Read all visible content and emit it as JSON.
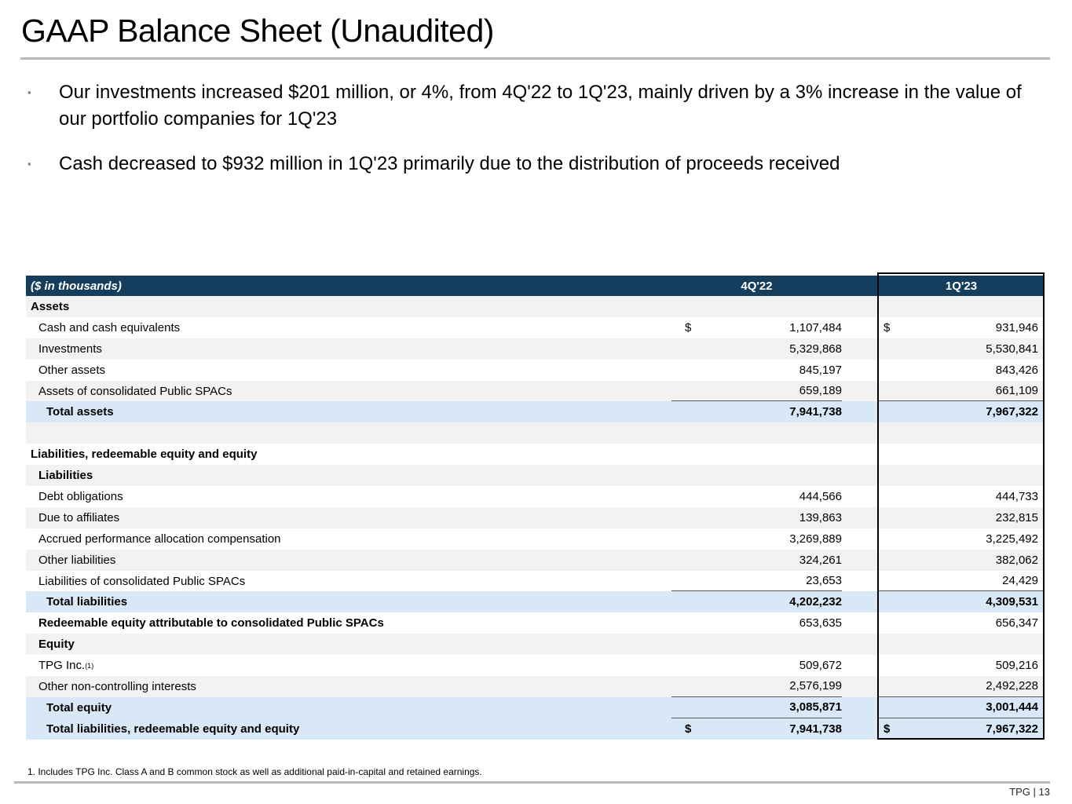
{
  "slide": {
    "title": "GAAP Balance Sheet (Unaudited)",
    "bullet_marker": "▪",
    "bullets": [
      "Our investments increased $201 million, or 4%, from 4Q'22 to 1Q'23, mainly driven by a 3% increase in the value of our portfolio companies for 1Q'23",
      "Cash decreased to $932 million in 1Q'23 primarily due to the distribution of proceeds received"
    ],
    "footnote": "1. Includes TPG Inc. Class A and B common stock as well as additional paid-in-capital and retained earnings.",
    "page_label": "TPG | 13"
  },
  "colors": {
    "header_navy": "#143d5e",
    "total_row_blue": "#d9e8f6",
    "alt_row_gray": "#f2f2f2",
    "highlight_border": "#000000",
    "rule_gray": "#b9b9b9"
  },
  "table": {
    "header": {
      "label": "($ in thousands)",
      "col1": "4Q'22",
      "col2": "1Q'23"
    },
    "dollar_sign": "$",
    "rows": [
      {
        "label": "Assets",
        "bold": true,
        "indent": 0,
        "bg": "gray"
      },
      {
        "label": "Cash and cash equivalents",
        "indent": 1,
        "bg": "white",
        "dollar": true,
        "v1": "1,107,484",
        "v2": "931,946"
      },
      {
        "label": "Investments",
        "indent": 1,
        "bg": "gray",
        "v1": "5,329,868",
        "v2": "5,530,841"
      },
      {
        "label": "Other assets",
        "indent": 1,
        "bg": "white",
        "v1": "845,197",
        "v2": "843,426"
      },
      {
        "label": "Assets of consolidated Public SPACs",
        "indent": 1,
        "bg": "gray",
        "v1": "659,189",
        "v2": "661,109",
        "underline": true
      },
      {
        "label": "Total assets",
        "bold": true,
        "vbold": true,
        "indent": 2,
        "bg": "blue",
        "v1": "7,941,738",
        "v2": "7,967,322"
      },
      {
        "label": "",
        "indent": 0,
        "bg": "gray"
      },
      {
        "label": "Liabilities, redeemable equity and equity",
        "bold": true,
        "indent": 0,
        "bg": "white"
      },
      {
        "label": "Liabilities",
        "bold": true,
        "indent": 1,
        "bg": "gray"
      },
      {
        "label": "Debt obligations",
        "indent": 1,
        "bg": "white",
        "v1": "444,566",
        "v2": "444,733"
      },
      {
        "label": "Due to affiliates",
        "indent": 1,
        "bg": "gray",
        "v1": "139,863",
        "v2": "232,815"
      },
      {
        "label": "Accrued performance allocation compensation",
        "indent": 1,
        "bg": "white",
        "v1": "3,269,889",
        "v2": "3,225,492"
      },
      {
        "label": "Other liabilities",
        "indent": 1,
        "bg": "gray",
        "v1": "324,261",
        "v2": "382,062"
      },
      {
        "label": "Liabilities of consolidated Public SPACs",
        "indent": 1,
        "bg": "white",
        "v1": "23,653",
        "v2": "24,429",
        "underline": true
      },
      {
        "label": "Total liabilities",
        "bold": true,
        "vbold": true,
        "indent": 2,
        "bg": "blue",
        "v1": "4,202,232",
        "v2": "4,309,531"
      },
      {
        "label": "Redeemable equity attributable to consolidated Public SPACs",
        "bold": true,
        "indent": 1,
        "bg": "white",
        "v1": "653,635",
        "v2": "656,347"
      },
      {
        "label": "Equity",
        "bold": true,
        "indent": 1,
        "bg": "gray"
      },
      {
        "label": "TPG Inc.",
        "sup": "(1)",
        "indent": 1,
        "bg": "white",
        "v1": "509,672",
        "v2": "509,216"
      },
      {
        "label": "Other non-controlling interests",
        "indent": 1,
        "bg": "gray",
        "v1": "2,576,199",
        "v2": "2,492,228",
        "underline": true
      },
      {
        "label": "Total equity",
        "bold": true,
        "vbold": true,
        "indent": 2,
        "bg": "blue",
        "v1": "3,085,871",
        "v2": "3,001,444",
        "underline": true
      },
      {
        "label": "Total liabilities, redeemable equity and equity",
        "bold": true,
        "vbold": true,
        "indent": 2,
        "bg": "blue",
        "dollar": true,
        "v1": "7,941,738",
        "v2": "7,967,322"
      }
    ]
  }
}
